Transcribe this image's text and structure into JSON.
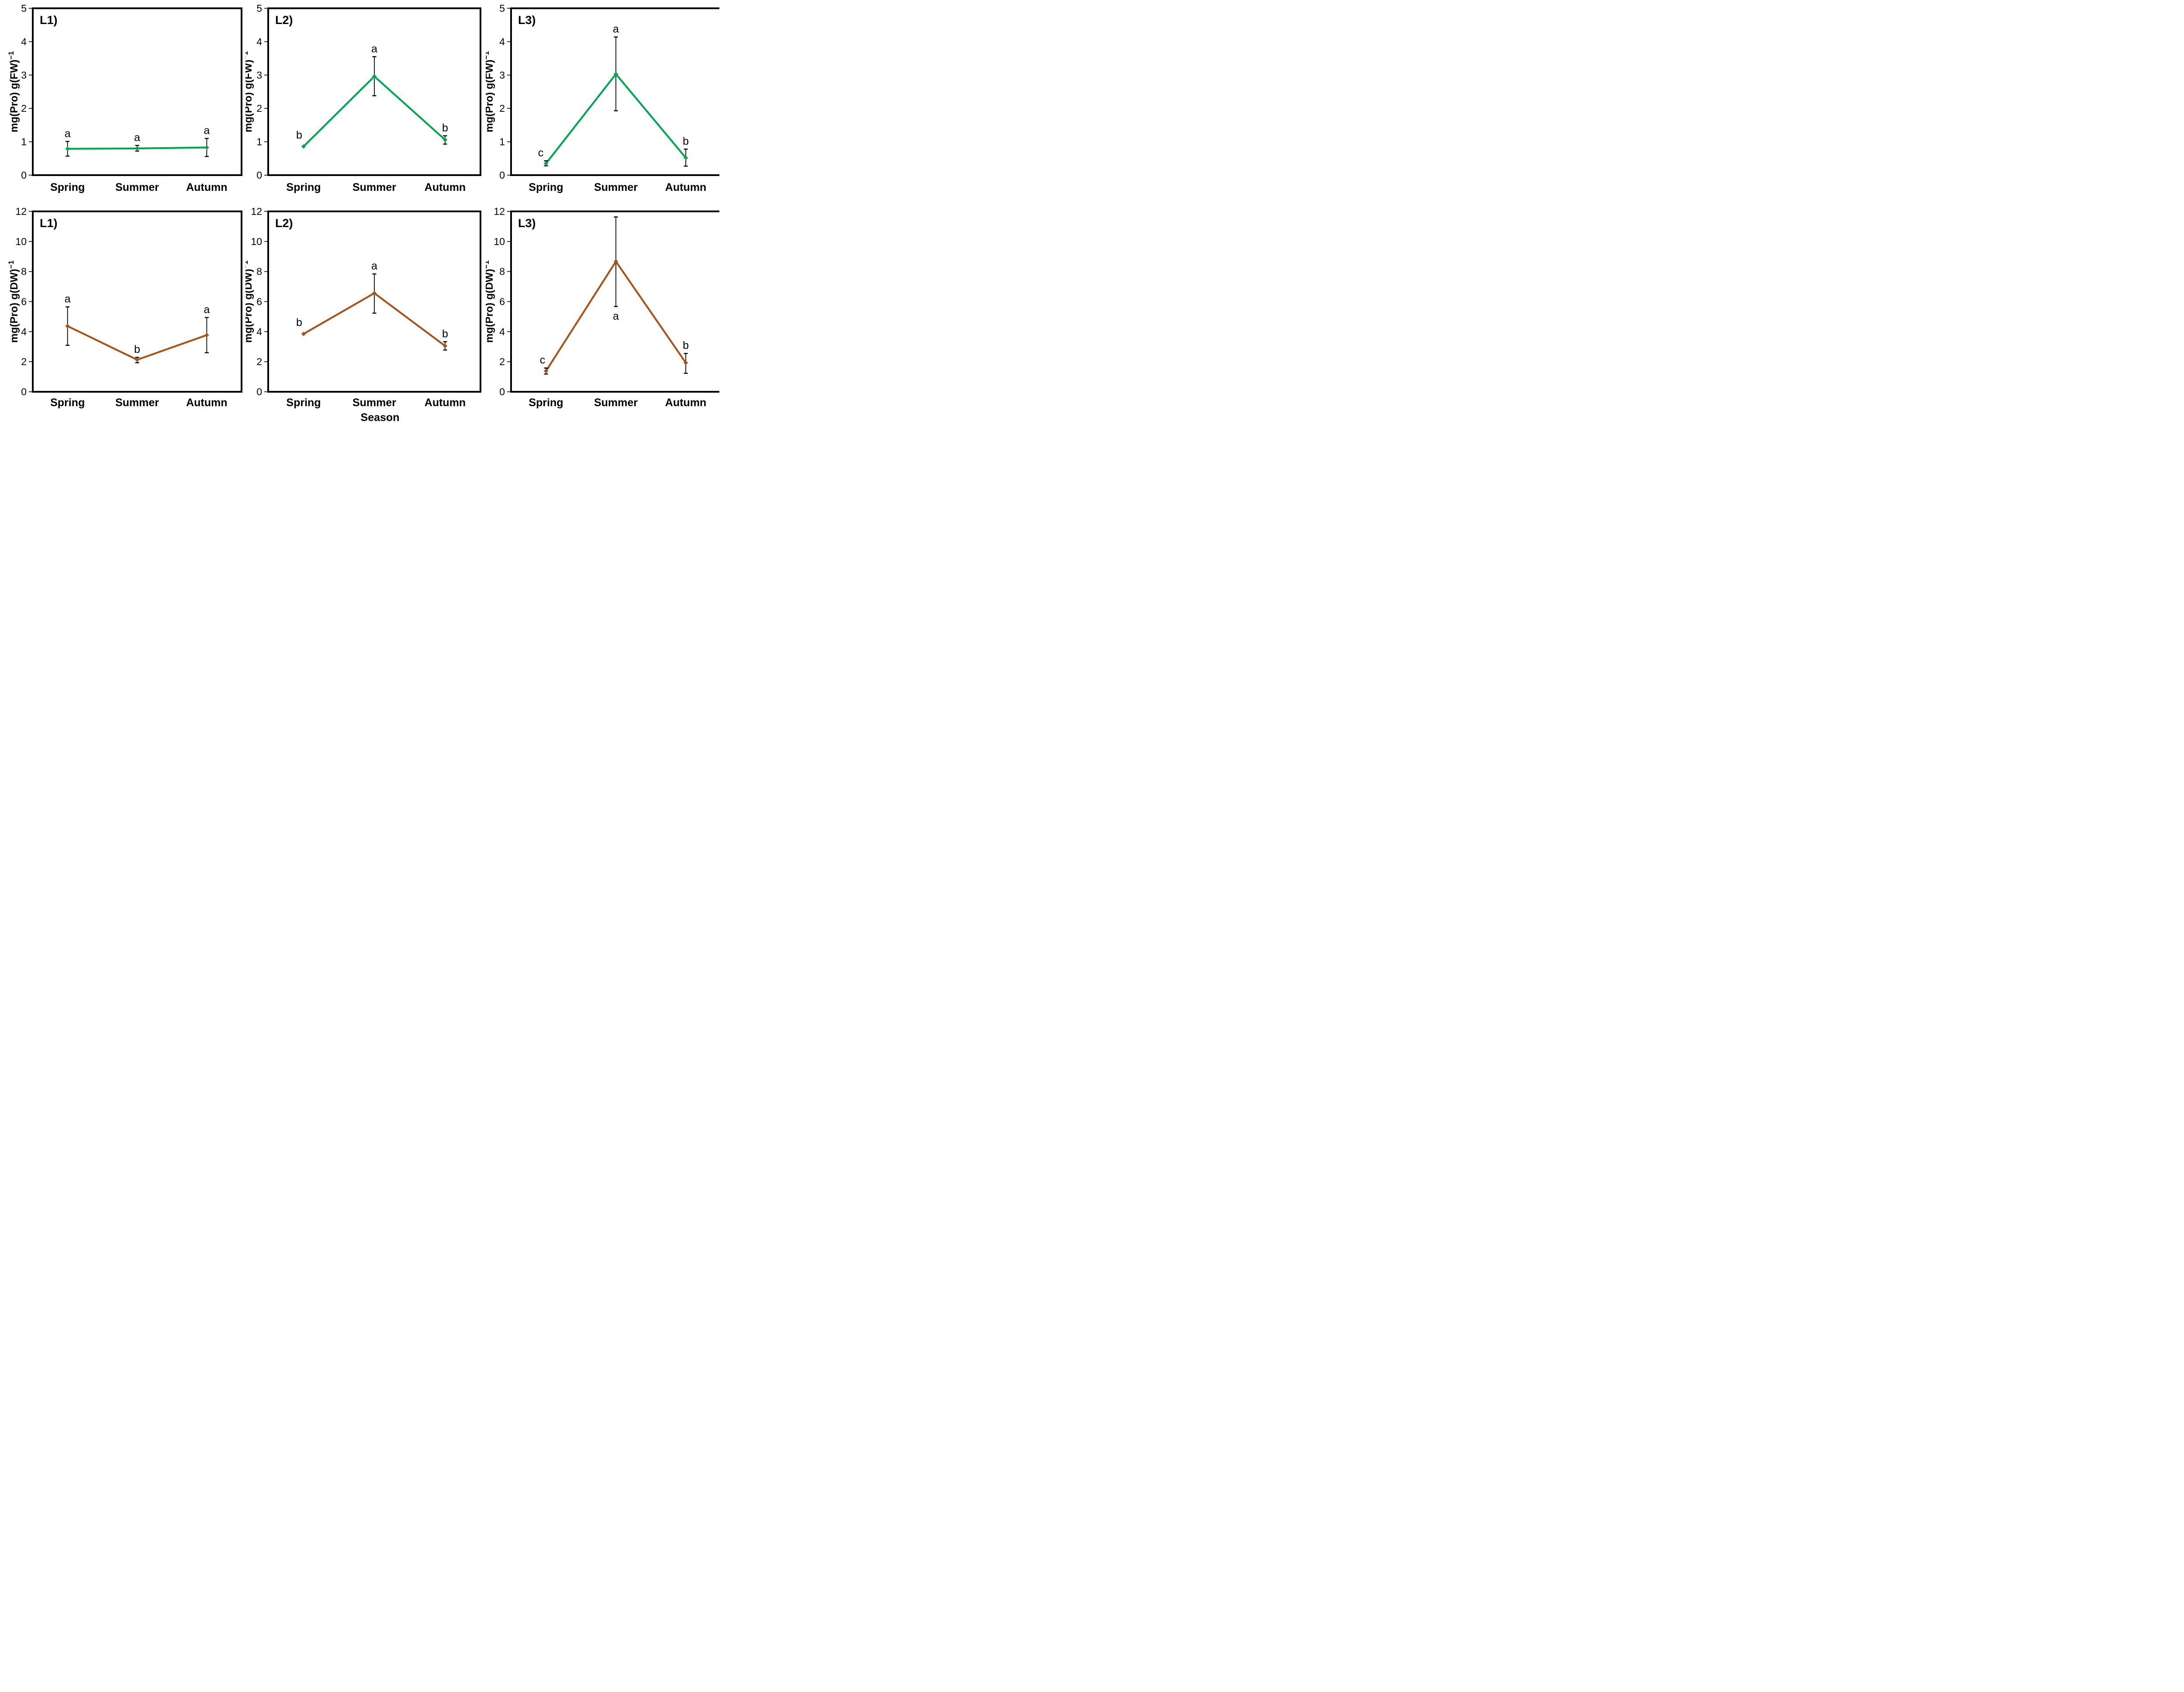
{
  "figure": {
    "xlabel": "Season",
    "background": "#ffffff",
    "text_color": "#000000",
    "frame_color": "#000000",
    "error_bar_color": "#000000",
    "fw_line_color": "#00A650",
    "dw_line_color": "#A7531A"
  },
  "chart_data": [
    {
      "type": "line",
      "panel_id": "L1-FW",
      "panel_label": "L1)",
      "ylabel_base": "mg(Pro) g(FW)",
      "ylabel_sup": "−1",
      "ylim": [
        0,
        5
      ],
      "yticks": [
        0,
        1,
        2,
        3,
        4,
        5
      ],
      "line_color": "#00A650",
      "legend": "none",
      "grid": "off",
      "categories": [
        "Spring",
        "Summer",
        "Autumn"
      ],
      "points": [
        {
          "category": "Spring",
          "value": 0.79,
          "err_low": 0.57,
          "err_high": 1.01,
          "letter": "a",
          "letter_pos": "above",
          "letter_dx": 0
        },
        {
          "category": "Summer",
          "value": 0.8,
          "err_low": 0.72,
          "err_high": 0.89,
          "letter": "a",
          "letter_pos": "above",
          "letter_dx": 0
        },
        {
          "category": "Autumn",
          "value": 0.83,
          "err_low": 0.56,
          "err_high": 1.1,
          "letter": "a",
          "letter_pos": "above",
          "letter_dx": 0
        }
      ]
    },
    {
      "type": "line",
      "panel_id": "L2-FW",
      "panel_label": "L2)",
      "ylabel_base": "mg(Pro) g(FW)",
      "ylabel_sup": "−1",
      "ylim": [
        0,
        5
      ],
      "yticks": [
        0,
        1,
        2,
        3,
        4,
        5
      ],
      "line_color": "#00A650",
      "legend": "none",
      "grid": "off",
      "categories": [
        "Spring",
        "Summer",
        "Autumn"
      ],
      "points": [
        {
          "category": "Spring",
          "value": 0.86,
          "err_low": null,
          "err_high": null,
          "letter": "b",
          "letter_pos": "above",
          "letter_dx": -10
        },
        {
          "category": "Summer",
          "value": 2.96,
          "err_low": 2.38,
          "err_high": 3.55,
          "letter": "a",
          "letter_pos": "above",
          "letter_dx": 0
        },
        {
          "category": "Autumn",
          "value": 1.06,
          "err_low": 0.93,
          "err_high": 1.18,
          "letter": "b",
          "letter_pos": "above",
          "letter_dx": 0
        }
      ]
    },
    {
      "type": "line",
      "panel_id": "L3-FW",
      "panel_label": "L3)",
      "ylabel_base": "mg(Pro) g(FW)",
      "ylabel_sup": "−1",
      "ylim": [
        0,
        5
      ],
      "yticks": [
        0,
        1,
        2,
        3,
        4,
        5
      ],
      "line_color": "#00A650",
      "legend": "none",
      "grid": "off",
      "categories": [
        "Spring",
        "Summer",
        "Autumn"
      ],
      "points": [
        {
          "category": "Spring",
          "value": 0.35,
          "err_low": 0.28,
          "err_high": 0.43,
          "letter": "c",
          "letter_pos": "above",
          "letter_dx": -12
        },
        {
          "category": "Summer",
          "value": 3.03,
          "err_low": 1.93,
          "err_high": 4.14,
          "letter": "a",
          "letter_pos": "above",
          "letter_dx": 0
        },
        {
          "category": "Autumn",
          "value": 0.52,
          "err_low": 0.27,
          "err_high": 0.78,
          "letter": "b",
          "letter_pos": "above",
          "letter_dx": 0
        }
      ]
    },
    {
      "type": "line",
      "panel_id": "L1-DW",
      "panel_label": "L1)",
      "ylabel_base": "mg(Pro) g(DW)",
      "ylabel_sup": "−1",
      "ylim": [
        0,
        12
      ],
      "yticks": [
        0,
        2,
        4,
        6,
        8,
        10,
        12
      ],
      "line_color": "#A7531A",
      "legend": "none",
      "grid": "off",
      "categories": [
        "Spring",
        "Summer",
        "Autumn"
      ],
      "points": [
        {
          "category": "Spring",
          "value": 4.37,
          "err_low": 3.09,
          "err_high": 5.65,
          "letter": "a",
          "letter_pos": "above",
          "letter_dx": 0
        },
        {
          "category": "Summer",
          "value": 2.13,
          "err_low": 1.93,
          "err_high": 2.29,
          "letter": "b",
          "letter_pos": "above",
          "letter_dx": 0
        },
        {
          "category": "Autumn",
          "value": 3.77,
          "err_low": 2.6,
          "err_high": 4.94,
          "letter": "a",
          "letter_pos": "above",
          "letter_dx": 0
        }
      ]
    },
    {
      "type": "line",
      "panel_id": "L2-DW",
      "panel_label": "L2)",
      "ylabel_base": "mg(Pro) g(DW)",
      "ylabel_sup": "−1",
      "ylim": [
        0,
        12
      ],
      "yticks": [
        0,
        2,
        4,
        6,
        8,
        10,
        12
      ],
      "line_color": "#A7531A",
      "legend": "none",
      "grid": "off",
      "categories": [
        "Spring",
        "Summer",
        "Autumn"
      ],
      "points": [
        {
          "category": "Spring",
          "value": 3.85,
          "err_low": null,
          "err_high": null,
          "letter": "b",
          "letter_pos": "above",
          "letter_dx": -10
        },
        {
          "category": "Summer",
          "value": 6.56,
          "err_low": 5.23,
          "err_high": 7.84,
          "letter": "a",
          "letter_pos": "above",
          "letter_dx": 0
        },
        {
          "category": "Autumn",
          "value": 3.05,
          "err_low": 2.78,
          "err_high": 3.33,
          "letter": "b",
          "letter_pos": "above",
          "letter_dx": 0
        }
      ]
    },
    {
      "type": "line",
      "panel_id": "L3-DW",
      "panel_label": "L3)",
      "ylabel_base": "mg(Pro) g(DW)",
      "ylabel_sup": "−1",
      "ylim": [
        0,
        12
      ],
      "yticks": [
        0,
        2,
        4,
        6,
        8,
        10,
        12
      ],
      "line_color": "#A7531A",
      "legend": "none",
      "grid": "off",
      "categories": [
        "Spring",
        "Summer",
        "Autumn"
      ],
      "points": [
        {
          "category": "Spring",
          "value": 1.38,
          "err_low": 1.18,
          "err_high": 1.58,
          "letter": "c",
          "letter_pos": "above",
          "letter_dx": -8
        },
        {
          "category": "Summer",
          "value": 8.67,
          "err_low": 5.67,
          "err_high": 11.63,
          "letter": "a",
          "letter_pos": "below",
          "letter_dx": 0
        },
        {
          "category": "Autumn",
          "value": 1.93,
          "err_low": 1.23,
          "err_high": 2.55,
          "letter": "b",
          "letter_pos": "above",
          "letter_dx": 0
        }
      ]
    }
  ]
}
